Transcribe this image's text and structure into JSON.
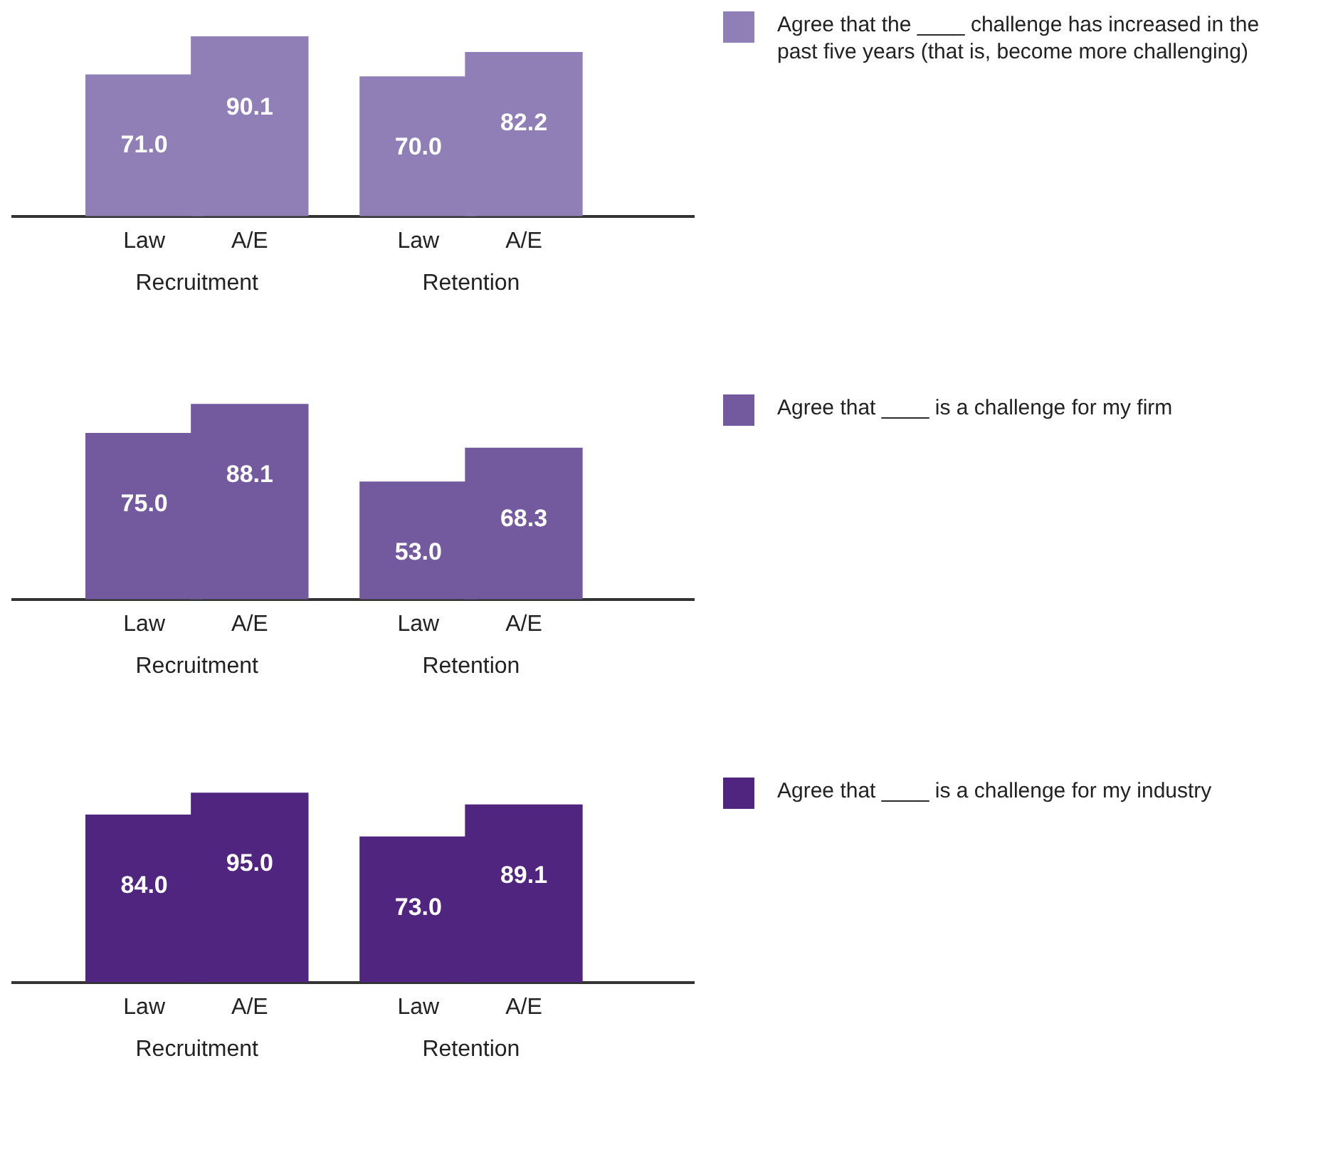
{
  "chart_data": [
    {
      "type": "bar",
      "categories": [
        "Law",
        "A/E",
        "Law",
        "A/E"
      ],
      "annotations": [
        "Recruitment",
        "Retention"
      ],
      "legend": "right",
      "series": [
        {
          "name": "Agree that the ____ challenge has increased in the past five years (that is, become more challenging)",
          "color": "#8f7fb6",
          "values": [
            71.0,
            90.1,
            70.0,
            82.2
          ],
          "value_labels": [
            "71.0",
            "90.1",
            "70.0",
            "82.2"
          ]
        }
      ]
    },
    {
      "type": "bar",
      "categories": [
        "Law",
        "A/E",
        "Law",
        "A/E"
      ],
      "annotations": [
        "Recruitment",
        "Retention"
      ],
      "legend": "right",
      "series": [
        {
          "name": "Agree that ____ is a challenge for my firm",
          "color": "#735a9f",
          "values": [
            75.0,
            88.1,
            53.0,
            68.3
          ],
          "value_labels": [
            "75.0",
            "88.1",
            "53.0",
            "68.3"
          ]
        }
      ]
    },
    {
      "type": "bar",
      "categories": [
        "Law",
        "A/E",
        "Law",
        "A/E"
      ],
      "annotations": [
        "Recruitment",
        "Retention"
      ],
      "legend": "right",
      "series": [
        {
          "name": "Agree that ____ is a challenge for my industry",
          "color": "#4f2580",
          "values": [
            84.0,
            95.0,
            73.0,
            89.1
          ],
          "value_labels": [
            "84.0",
            "95.0",
            "73.0",
            "89.1"
          ]
        }
      ]
    }
  ]
}
